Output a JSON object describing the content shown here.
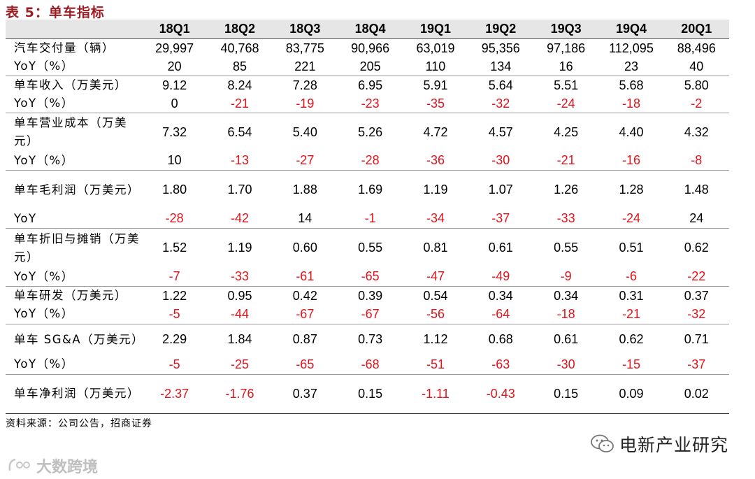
{
  "title": "表 5：单车指标",
  "header": [
    "",
    "18Q1",
    "18Q2",
    "18Q3",
    "18Q4",
    "19Q1",
    "19Q2",
    "19Q3",
    "19Q4",
    "20Q1"
  ],
  "groups": [
    {
      "rows": [
        {
          "label": "汽车交付量（辆）",
          "values": [
            "29,997",
            "40,768",
            "83,775",
            "90,966",
            "63,019",
            "95,356",
            "97,186",
            "112,095",
            "88,496"
          ],
          "height": 26
        },
        {
          "label": "YoY（%）",
          "values": [
            "20",
            "85",
            "221",
            "205",
            "110",
            "134",
            "16",
            "23",
            "40"
          ],
          "height": 26
        }
      ]
    },
    {
      "rows": [
        {
          "label": "单车收入（万美元）",
          "values": [
            "9.12",
            "8.24",
            "7.28",
            "6.95",
            "5.91",
            "5.64",
            "5.51",
            "5.68",
            "5.80"
          ],
          "height": 26
        },
        {
          "label": "YoY（%）",
          "values": [
            "0",
            "-21",
            "-19",
            "-23",
            "-35",
            "-32",
            "-24",
            "-18",
            "-2"
          ],
          "height": 26
        }
      ]
    },
    {
      "rows": [
        {
          "label": "单车营业成本（万美元）",
          "values": [
            "7.32",
            "6.54",
            "5.40",
            "5.26",
            "4.72",
            "4.57",
            "4.25",
            "4.40",
            "4.32"
          ],
          "height": 55
        },
        {
          "label": "YoY（%）",
          "values": [
            "10",
            "-13",
            "-27",
            "-28",
            "-36",
            "-30",
            "-21",
            "-16",
            "-8"
          ],
          "height": 27
        }
      ]
    },
    {
      "rows": [
        {
          "label": "单车毛利润（万美元）",
          "values": [
            "1.80",
            "1.70",
            "1.88",
            "1.69",
            "1.19",
            "1.07",
            "1.26",
            "1.28",
            "1.48"
          ],
          "height": 56
        },
        {
          "label": "YoY",
          "values": [
            "-28",
            "-42",
            "14",
            "-1",
            "-34",
            "-37",
            "-33",
            "-24",
            "24"
          ],
          "height": 27
        }
      ]
    },
    {
      "rows": [
        {
          "label": "单车折旧与摊销（万美元）",
          "values": [
            "1.52",
            "1.19",
            "0.60",
            "0.55",
            "0.81",
            "0.61",
            "0.55",
            "0.51",
            "0.62"
          ],
          "height": 56
        },
        {
          "label": "YoY（%）",
          "values": [
            "-7",
            "-33",
            "-61",
            "-65",
            "-47",
            "-49",
            "-9",
            "-6",
            "-22"
          ],
          "height": 27
        }
      ]
    },
    {
      "rows": [
        {
          "label": "单车研发（万美元）",
          "values": [
            "1.22",
            "0.95",
            "0.42",
            "0.39",
            "0.54",
            "0.34",
            "0.34",
            "0.31",
            "0.37"
          ],
          "height": 25
        },
        {
          "label": "YoY（%）",
          "values": [
            "-5",
            "-44",
            "-67",
            "-67",
            "-56",
            "-64",
            "-18",
            "-21",
            "-32"
          ],
          "height": 27
        }
      ]
    },
    {
      "rows": [
        {
          "label": "单车 SG&A（万美元）",
          "values": [
            "2.29",
            "1.84",
            "0.87",
            "0.73",
            "1.12",
            "0.68",
            "0.61",
            "0.62",
            "0.71"
          ],
          "height": 45
        },
        {
          "label": "YoY（%）",
          "values": [
            "-5",
            "-25",
            "-65",
            "-68",
            "-51",
            "-63",
            "-30",
            "-15",
            "-37"
          ],
          "height": 27
        }
      ]
    },
    {
      "rows": [
        {
          "label": "单车净利润（万美元）",
          "values": [
            "-2.37",
            "-1.76",
            "0.37",
            "0.15",
            "-1.11",
            "-0.43",
            "0.15",
            "0.09",
            "0.02"
          ],
          "height": 56
        }
      ]
    }
  ],
  "source": "资料来源：公司公告，招商证券",
  "brand": "电新产业研究",
  "watermark": "大数跨境"
}
